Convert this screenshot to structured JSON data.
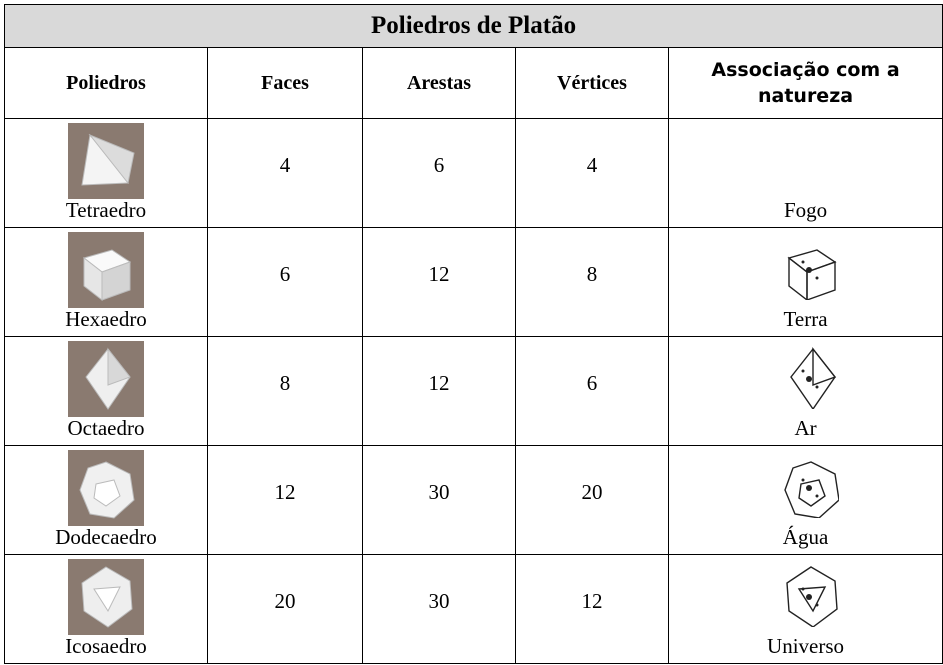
{
  "table": {
    "title": "Poliedros de Platão",
    "headers": [
      "Poliedros",
      "Faces",
      "Arestas",
      "Vértices",
      "Associação com a natureza"
    ],
    "rows": [
      [
        "Tetraedro",
        4,
        6,
        4,
        "Fogo"
      ],
      [
        "Hexaedro",
        6,
        12,
        8,
        "Terra"
      ],
      [
        "Octaedro",
        8,
        12,
        6,
        "Ar"
      ],
      [
        "Dodecaedro",
        12,
        30,
        20,
        "Água"
      ],
      [
        "Icosaedro",
        20,
        30,
        12,
        "Universo"
      ]
    ]
  }
}
